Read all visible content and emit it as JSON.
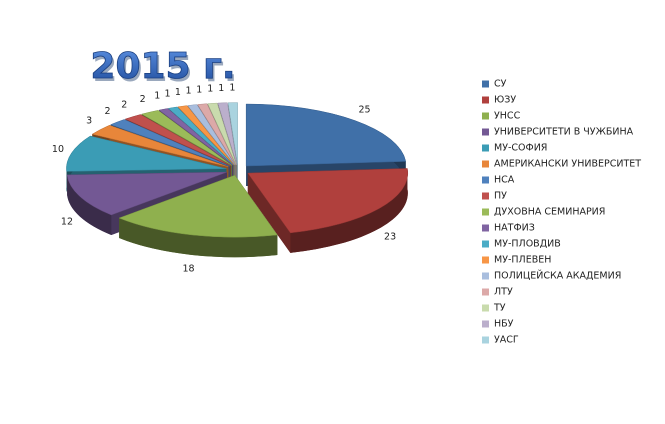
{
  "chart_data": {
    "type": "pie",
    "title": "2015 г.",
    "categories": [
      "СУ",
      "ЮЗУ",
      "УНСС",
      "УНИВЕРСИТЕТИ В ЧУЖБИНА",
      "МУ-СОФИЯ",
      "АМЕРИКАНСКИ УНИВЕРСИТЕТ",
      "НСА",
      "ПУ",
      "ДУХОВНА СЕМИНАРИЯ",
      "НАТФИЗ",
      "МУ-ПЛОВДИВ",
      "МУ-ПЛЕВЕН",
      "ПОЛИЦЕЙСКА АКАДЕМИЯ",
      "ЛТУ",
      "ТУ",
      "НБУ",
      "УАСГ"
    ],
    "values": [
      25,
      23,
      18,
      12,
      10,
      3,
      2,
      2,
      2,
      1,
      1,
      1,
      1,
      1,
      1,
      1,
      1
    ],
    "colors": [
      "#4070a8",
      "#b0403d",
      "#8fb04e",
      "#735894",
      "#3b9cb5",
      "#e8863a",
      "#4f81bd",
      "#c0504d",
      "#9bbb59",
      "#8064a2",
      "#4bacc6",
      "#f79646",
      "#a9bede",
      "#dca9a8",
      "#c9dbad",
      "#bbafcc",
      "#a9d3df"
    ],
    "legend": "right"
  }
}
